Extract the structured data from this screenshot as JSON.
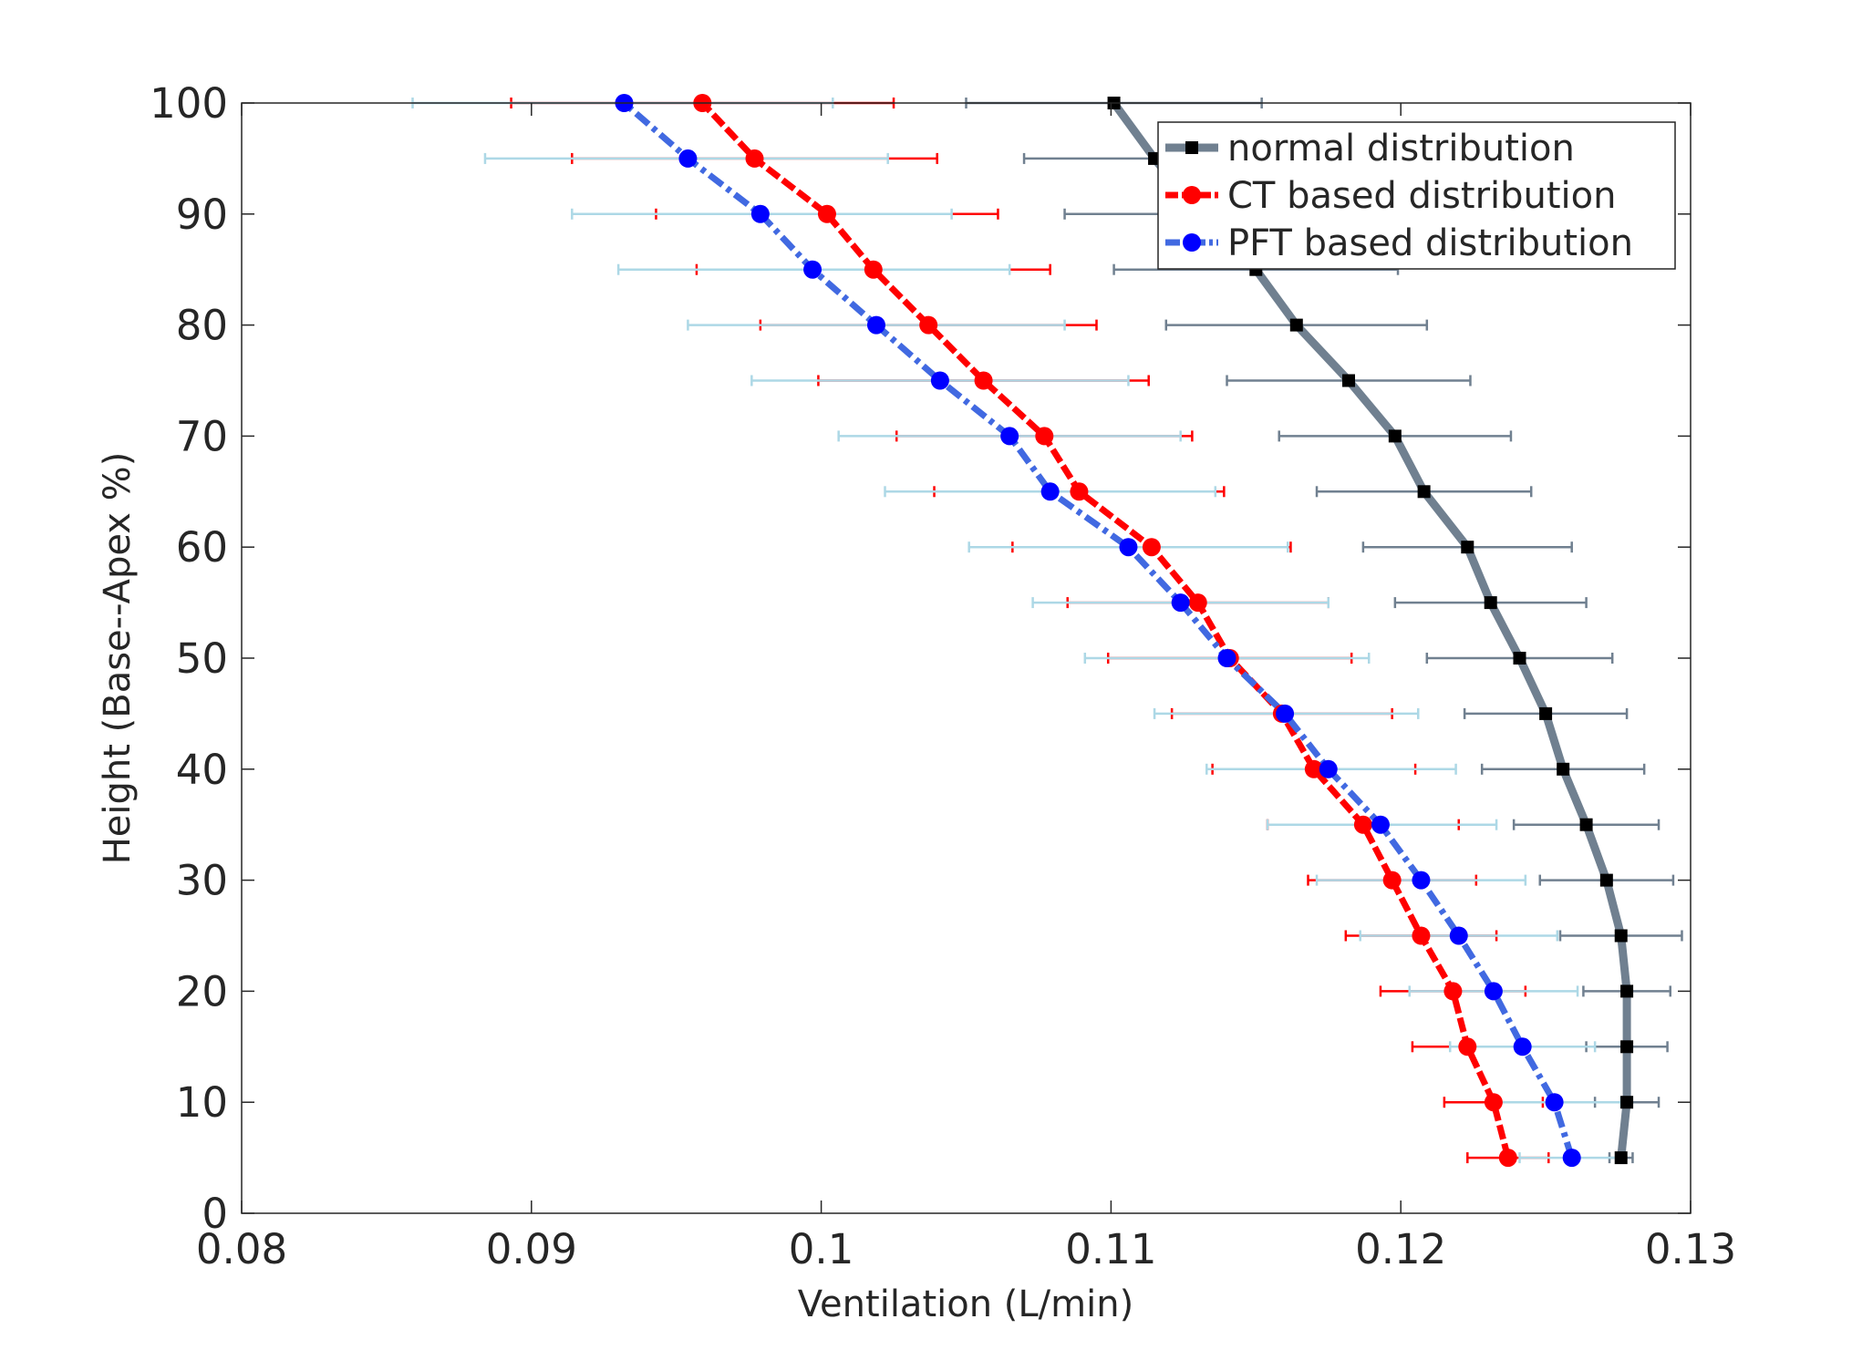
{
  "chart_data": {
    "type": "line",
    "title": "",
    "xlabel": "Ventilation (L/min)",
    "ylabel": "Height (Base--Apex %)",
    "xlim": [
      0.08,
      0.13
    ],
    "ylim": [
      0,
      100
    ],
    "xticks": [
      "0.08",
      "0.09",
      "0.1",
      "0.11",
      "0.12",
      "0.13"
    ],
    "yticks": [
      "0",
      "10",
      "20",
      "30",
      "40",
      "50",
      "60",
      "70",
      "80",
      "90",
      "100"
    ],
    "grid": false,
    "legend_position": "top-right",
    "y": [
      5,
      10,
      15,
      20,
      25,
      30,
      35,
      40,
      45,
      50,
      55,
      60,
      65,
      70,
      75,
      80,
      85,
      90,
      95,
      100
    ],
    "series": [
      {
        "name": "normal distribution",
        "color": "#708090",
        "marker_color": "#000000",
        "errorbar_color": "#708090",
        "line_style": "solid",
        "x": [
          0.1276,
          0.1278,
          0.1278,
          0.1278,
          0.1276,
          0.1271,
          0.1264,
          0.1256,
          0.125,
          0.1241,
          0.1231,
          0.1223,
          0.1208,
          0.1198,
          0.1182,
          0.1164,
          0.115,
          0.113,
          0.1115,
          0.1101
        ],
        "error": [
          0.0004,
          0.0011,
          0.0014,
          0.0015,
          0.0021,
          0.0023,
          0.0025,
          0.0028,
          0.0028,
          0.0032,
          0.0033,
          0.0036,
          0.0037,
          0.004,
          0.0042,
          0.0045,
          0.0049,
          0.0046,
          0.0045,
          0.0051
        ]
      },
      {
        "name": "CT based distribution",
        "color": "#ff0000",
        "marker_color": "#ff0000",
        "errorbar_color": "#ff0000",
        "line_style": "dashed",
        "x": [
          0.1237,
          0.1232,
          0.1223,
          0.1218,
          0.1207,
          0.1197,
          0.1187,
          0.117,
          0.1159,
          0.1141,
          0.113,
          0.1114,
          0.1089,
          0.1077,
          0.1056,
          0.1037,
          0.1018,
          0.1002,
          0.0977,
          0.0959
        ],
        "error": [
          0.0014,
          0.0017,
          0.0019,
          0.0025,
          0.0026,
          0.0029,
          0.0033,
          0.0035,
          0.0038,
          0.0042,
          0.0045,
          0.0048,
          0.005,
          0.0051,
          0.0057,
          0.0058,
          0.0061,
          0.0059,
          0.0063,
          0.0066
        ]
      },
      {
        "name": "PFT based distribution",
        "color": "#4169e1",
        "marker_color": "#0000ff",
        "errorbar_color": "#add8e6",
        "line_style": "dashdot",
        "x": [
          0.1259,
          0.1253,
          0.1242,
          0.1232,
          0.122,
          0.1207,
          0.1193,
          0.1175,
          0.116,
          0.114,
          0.1124,
          0.1106,
          0.1079,
          0.1065,
          0.1041,
          0.1019,
          0.0997,
          0.0979,
          0.0954,
          0.0932
        ]
      }
    ],
    "pft_errorbars": {
      "low": [
        0.1241,
        0.123,
        0.1217,
        0.1203,
        0.1186,
        0.1171,
        0.1154,
        0.1133,
        0.1115,
        0.1091,
        0.1073,
        0.1051,
        0.1022,
        0.1006,
        0.0976,
        0.0954,
        0.093,
        0.0914,
        0.0884,
        0.0859
      ],
      "high": [
        0.1277,
        0.1276,
        0.1267,
        0.1261,
        0.1254,
        0.1243,
        0.1233,
        0.1219,
        0.1206,
        0.1189,
        0.1175,
        0.1161,
        0.1136,
        0.1124,
        0.1106,
        0.1084,
        0.1065,
        0.1045,
        0.1023,
        0.1004
      ]
    }
  }
}
